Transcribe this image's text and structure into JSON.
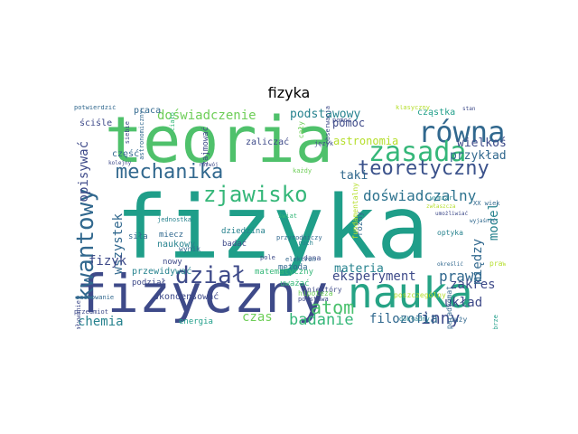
{
  "figure": {
    "title": "fizyka"
  },
  "palette": [
    "#3e4a89",
    "#31688e",
    "#26828e",
    "#1f9e89",
    "#35b779",
    "#6ece58",
    "#b5de2b",
    "#fde725",
    "#482878"
  ],
  "words": [
    {
      "text": "fizyka",
      "color": "#1f9e89"
    },
    {
      "text": "teoria",
      "color": "#4fc16b"
    },
    {
      "text": "fizyczny",
      "color": "#3e4a89"
    },
    {
      "text": "nauka",
      "color": "#26a385"
    },
    {
      "text": "równanie",
      "color": "#31688e"
    },
    {
      "text": "zasada",
      "color": "#35b779"
    },
    {
      "text": "teoretyczny",
      "color": "#3b528b"
    },
    {
      "text": "mechanika",
      "color": "#31688e"
    },
    {
      "text": "zjawisko",
      "color": "#35b779"
    },
    {
      "text": "kwantowy",
      "color": "#31688e"
    },
    {
      "text": "doświadczenie",
      "color": "#6ece58"
    },
    {
      "text": "doświadczalny",
      "color": "#2c728e"
    },
    {
      "text": "dział",
      "color": "#3e4a89"
    },
    {
      "text": "atom",
      "color": "#4ac16d"
    },
    {
      "text": "badanie",
      "color": "#35b779"
    },
    {
      "text": "inny",
      "color": "#3e4a89"
    },
    {
      "text": "prawo",
      "color": "#31688e"
    },
    {
      "text": "eksperyment",
      "color": "#3e4a89"
    },
    {
      "text": "materia",
      "color": "#26828e"
    },
    {
      "text": "filozofia",
      "color": "#31688e"
    },
    {
      "text": "podstawowy",
      "color": "#26828e"
    },
    {
      "text": "astronomia",
      "color": "#b5de2b"
    },
    {
      "text": "wielkość",
      "color": "#3e4a89"
    },
    {
      "text": "przykład",
      "color": "#31688e"
    },
    {
      "text": "opisywać",
      "color": "#3e4a89"
    },
    {
      "text": "wszystek",
      "color": "#31688e"
    },
    {
      "text": "chemia",
      "color": "#26828e"
    },
    {
      "text": "czas",
      "color": "#6ece58"
    },
    {
      "text": "fizyk",
      "color": "#3e4a89"
    },
    {
      "text": "zakres",
      "color": "#3e4a89"
    },
    {
      "text": "układ",
      "color": "#3e4a89"
    },
    {
      "text": "model",
      "color": "#26828e"
    },
    {
      "text": "między",
      "color": "#31688e"
    },
    {
      "text": "pomoc",
      "color": "#3e4a89"
    },
    {
      "text": "taki",
      "color": "#31688e"
    },
    {
      "text": "praca",
      "color": "#31688e"
    },
    {
      "text": "cząstka",
      "color": "#1f9e89"
    },
    {
      "text": "naukowy",
      "color": "#26828e"
    },
    {
      "text": "nowy",
      "color": "#3e4a89"
    },
    {
      "text": "metoda",
      "color": "#31688e"
    },
    {
      "text": "zaliczać",
      "color": "#3e4a89"
    },
    {
      "text": "skondensować",
      "color": "#3e4a89"
    },
    {
      "text": "przewidywać",
      "color": "#26828e"
    },
    {
      "text": "energia",
      "color": "#1f9e89"
    },
    {
      "text": "badać",
      "color": "#3e4a89"
    },
    {
      "text": "dziedzina",
      "color": "#26828e"
    },
    {
      "text": "matematyczny",
      "color": "#35b779"
    },
    {
      "text": "paradygmat",
      "color": "#31688e"
    },
    {
      "text": "różny",
      "color": "#31688e"
    },
    {
      "text": "podział",
      "color": "#3e4a89"
    },
    {
      "text": "ściśle",
      "color": "#3e4a89"
    },
    {
      "text": "część",
      "color": "#31688e"
    },
    {
      "text": "wynik",
      "color": "#31688e"
    },
    {
      "text": "dana",
      "color": "#3e4a89"
    },
    {
      "text": "optyka",
      "color": "#26828e"
    },
    {
      "text": "niektóry",
      "color": "#3e4a89"
    },
    {
      "text": "duży",
      "color": "#31688e"
    },
    {
      "text": "fundamentalny",
      "color": "#b5de2b"
    },
    {
      "text": "hipoteza",
      "color": "#6ece58"
    },
    {
      "text": "poszczególny",
      "color": "#b5de2b"
    },
    {
      "text": "dokładny",
      "color": "#26828e"
    },
    {
      "text": "prawa",
      "color": "#b5de2b"
    },
    {
      "text": "zajmować",
      "color": "#3e4a89"
    },
    {
      "text": "pomoc",
      "color": "#3e4a89"
    },
    {
      "text": "potwierdzić",
      "color": "#31688e"
    },
    {
      "text": "oddziaływanie",
      "color": "#3e4a89"
    },
    {
      "text": "zachowanie",
      "color": "#31688e"
    },
    {
      "text": "ciało",
      "color": "#35b779"
    },
    {
      "text": "elektron",
      "color": "#31688e"
    },
    {
      "text": "pole",
      "color": "#3e4a89"
    },
    {
      "text": "siła",
      "color": "#31688e"
    },
    {
      "text": "ruch",
      "color": "#26828e"
    },
    {
      "text": "cały",
      "color": "#6ece58"
    },
    {
      "text": "XX wiek",
      "color": "#31688e"
    },
    {
      "text": "język",
      "color": "#3e4a89"
    },
    {
      "text": "przyrodniczy",
      "color": "#31688e"
    },
    {
      "text": "obserwacja",
      "color": "#3e4a89"
    },
    {
      "text": "kolejny",
      "color": "#3e4a89"
    },
    {
      "text": "umożliwiać",
      "color": "#3e4a89"
    },
    {
      "text": "dobrze",
      "color": "#1f9e89"
    },
    {
      "text": "zwłaszcza",
      "color": "#b5de2b"
    },
    {
      "text": "jednostka",
      "color": "#26828e"
    },
    {
      "text": "miecz",
      "color": "#31688e"
    },
    {
      "text": "wymiar",
      "color": "#26828e"
    },
    {
      "text": "klasyczny",
      "color": "#b5de2b"
    },
    {
      "text": "rozwój",
      "color": "#3e4a89"
    },
    {
      "text": "świat",
      "color": "#35b779"
    },
    {
      "text": "stan",
      "color": "#3e4a89"
    },
    {
      "text": "siebie",
      "color": "#3e4a89"
    },
    {
      "text": "astronomiczny",
      "color": "#31688e"
    },
    {
      "text": "uważać",
      "color": "#35b779"
    },
    {
      "text": "podstawa",
      "color": "#3e4a89"
    },
    {
      "text": "każdy",
      "color": "#6ece58"
    },
    {
      "text": "określić",
      "color": "#31688e"
    },
    {
      "text": "wyjaśnić",
      "color": "#31688e"
    },
    {
      "text": "przedmiot",
      "color": "#3e4a89"
    }
  ]
}
